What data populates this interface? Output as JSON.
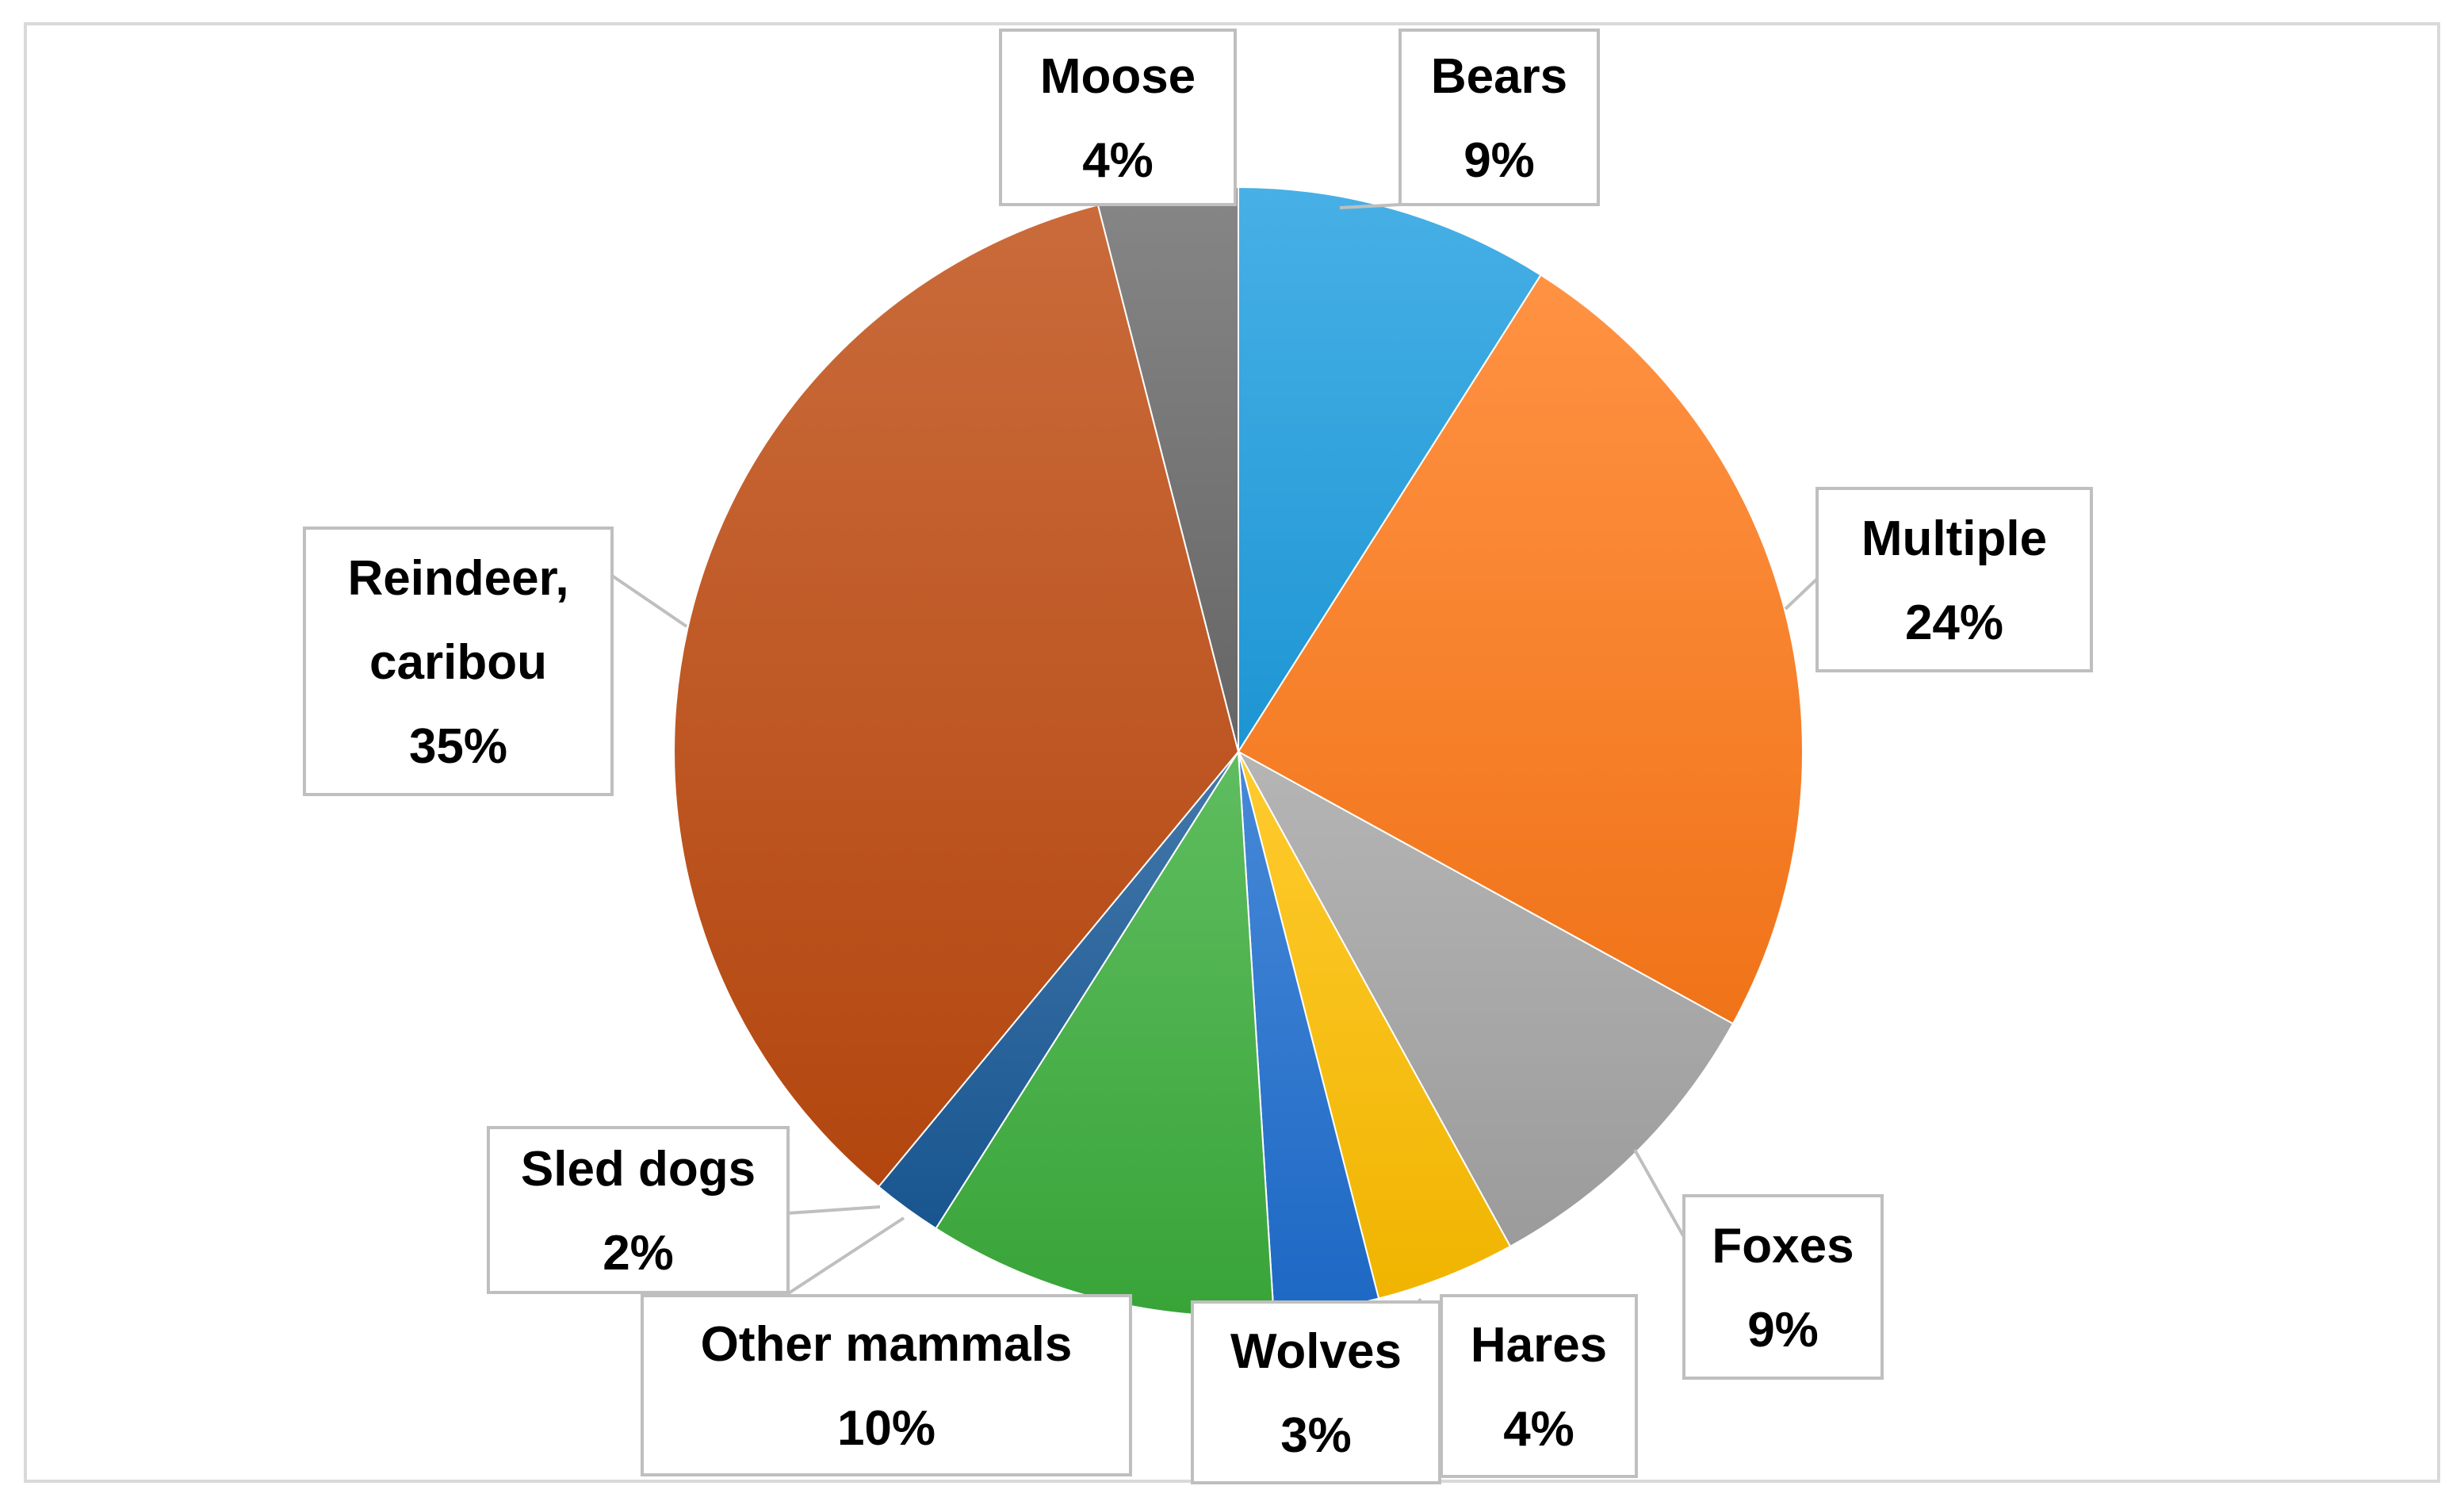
{
  "chart_data": {
    "type": "pie",
    "title": "",
    "slices": [
      {
        "label": "Bears",
        "lines": [
          "Bears"
        ],
        "value": 9,
        "display": "9%",
        "color": "#1f9fe0"
      },
      {
        "label": "Multiple",
        "lines": [
          "Multiple"
        ],
        "value": 24,
        "display": "24%",
        "color": "#ff7a1a"
      },
      {
        "label": "Foxes",
        "lines": [
          "Foxes"
        ],
        "value": 9,
        "display": "9%",
        "color": "#a5a5a5"
      },
      {
        "label": "Hares",
        "lines": [
          "Hares"
        ],
        "value": 4,
        "display": "4%",
        "color": "#ffc000"
      },
      {
        "label": "Wolves",
        "lines": [
          "Wolves"
        ],
        "value": 3,
        "display": "3%",
        "color": "#1f6fd0"
      },
      {
        "label": "Other mammals",
        "lines": [
          "Other mammals"
        ],
        "value": 10,
        "display": "10%",
        "color": "#3cae3c"
      },
      {
        "label": "Sled dogs",
        "lines": [
          "Sled dogs"
        ],
        "value": 2,
        "display": "2%",
        "color": "#1a5a98"
      },
      {
        "label": "Reindeer, caribou",
        "lines": [
          "Reindeer,",
          "caribou"
        ],
        "value": 35,
        "display": "35%",
        "color": "#be4a10"
      },
      {
        "label": "Moose",
        "lines": [
          "Moose"
        ],
        "value": 4,
        "display": "4%",
        "color": "#6b6b6b"
      }
    ]
  }
}
